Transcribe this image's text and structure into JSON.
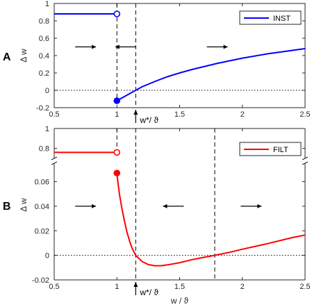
{
  "chart_data": [
    {
      "type": "line",
      "panel_label": "A",
      "ylabel": "Δ w",
      "xlabel": "",
      "xlim": [
        0.5,
        2.5
      ],
      "ylim": [
        -0.2,
        1.0
      ],
      "xticks": [
        0.5,
        1,
        1.5,
        2,
        2.5
      ],
      "yticks": [
        -0.2,
        0,
        0.2,
        0.4,
        0.6,
        0.8,
        1
      ],
      "color": "#0000ff",
      "legend": {
        "label": "INST",
        "position": "top-right"
      },
      "series": [
        {
          "name": "INST",
          "x": [
            0.5,
            1.0
          ],
          "y": [
            0.88,
            0.88
          ]
        },
        {
          "name": "INST",
          "x": [
            1.0,
            1.05,
            1.1,
            1.15,
            1.2,
            1.3,
            1.4,
            1.5,
            1.6,
            1.8,
            2.0,
            2.2,
            2.4,
            2.5
          ],
          "y": [
            -0.12,
            -0.08,
            -0.04,
            0.0,
            0.04,
            0.1,
            0.155,
            0.2,
            0.24,
            0.31,
            0.37,
            0.42,
            0.46,
            0.48
          ]
        }
      ],
      "markers": [
        {
          "x": 1.0,
          "y": 0.88,
          "fill": "open"
        },
        {
          "x": 1.0,
          "y": -0.12,
          "fill": "filled"
        }
      ],
      "vlines": [
        {
          "x": 1.0,
          "style": "dashed",
          "span": "upper"
        },
        {
          "x": 1.15,
          "style": "dashed",
          "span": "full"
        }
      ],
      "hline": {
        "y": 0,
        "style": "dotted"
      },
      "arrows": [
        {
          "x": 0.75,
          "y": 0.5,
          "dir": "right"
        },
        {
          "x": 1.07,
          "y": 0.5,
          "dir": "left"
        },
        {
          "x": 1.8,
          "y": 0.5,
          "dir": "right"
        }
      ],
      "annotation": {
        "text": "w*/ ϑ",
        "x": 1.15
      }
    },
    {
      "type": "line",
      "panel_label": "B",
      "ylabel": "Δ w",
      "xlabel": "w / ϑ",
      "xlim": [
        0.5,
        2.5
      ],
      "ylim_upper": [
        0.7,
        1.0
      ],
      "ylim_lower": [
        -0.02,
        0.075
      ],
      "xticks": [
        0.5,
        1,
        1.5,
        2,
        2.5
      ],
      "yticks_upper": [
        0.8,
        1
      ],
      "yticks_lower": [
        -0.02,
        0,
        0.02,
        0.04,
        0.06
      ],
      "color": "#ff0000",
      "legend": {
        "label": "FILT",
        "position": "top-right"
      },
      "series": [
        {
          "name": "FILT",
          "x": [
            0.5,
            1.0
          ],
          "y": [
            0.76,
            0.76
          ]
        },
        {
          "name": "FILT",
          "x": [
            1.0,
            1.02,
            1.04,
            1.06,
            1.08,
            1.1,
            1.12,
            1.15,
            1.2,
            1.25,
            1.3,
            1.35,
            1.4,
            1.5,
            1.6,
            1.7,
            1.78,
            1.9,
            2.0,
            2.2,
            2.4,
            2.5
          ],
          "y": [
            0.066,
            0.05,
            0.038,
            0.028,
            0.019,
            0.012,
            0.006,
            0.0,
            -0.005,
            -0.0075,
            -0.0085,
            -0.0085,
            -0.0078,
            -0.006,
            -0.0035,
            -0.0015,
            0.0,
            0.0025,
            0.005,
            0.0095,
            0.0145,
            0.0165
          ]
        }
      ],
      "markers": [
        {
          "x": 1.0,
          "y": 0.76,
          "fill": "open",
          "axis": "upper"
        },
        {
          "x": 1.0,
          "y": 0.067,
          "fill": "filled",
          "axis": "lower"
        }
      ],
      "vlines": [
        {
          "x": 1.0,
          "style": "dashed",
          "span": "upper"
        },
        {
          "x": 1.15,
          "style": "dashed",
          "span": "full"
        },
        {
          "x": 1.78,
          "style": "dashed",
          "span": "full"
        }
      ],
      "hline": {
        "y": 0,
        "style": "dotted"
      },
      "arrows": [
        {
          "x": 0.75,
          "y": 0.04,
          "dir": "right"
        },
        {
          "x": 1.45,
          "y": 0.04,
          "dir": "left"
        },
        {
          "x": 2.07,
          "y": 0.04,
          "dir": "right"
        }
      ],
      "annotation": {
        "text": "w*/ ϑ",
        "x": 1.15
      }
    }
  ]
}
